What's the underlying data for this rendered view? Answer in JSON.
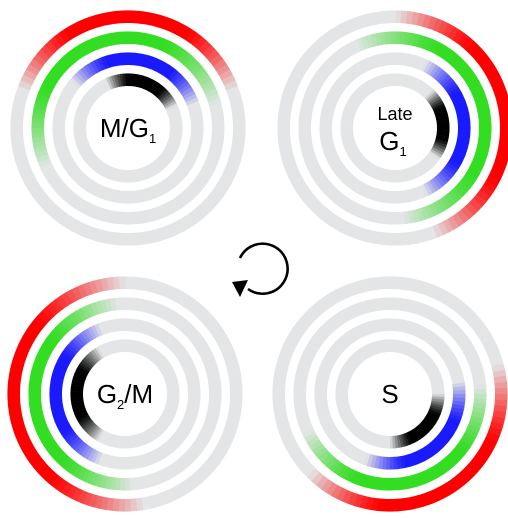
{
  "colors": {
    "ring_background": "#e3e5e6",
    "outer_ring": "#ff0000",
    "second_ring": "#33dd22",
    "third_ring": "#1a1aff",
    "inner_ring": "#000000",
    "cycle_arrow": "#000000"
  },
  "ring_order": [
    "outer_ring",
    "second_ring",
    "third_ring",
    "inner_ring"
  ],
  "cycle_arrow_icon": "clockwise-cycle-arrow",
  "panels": [
    {
      "id": "m-g1",
      "label": {
        "main": "M/G",
        "sub": "1",
        "after": ""
      },
      "rings": [
        {
          "center_deg": 0,
          "span_deg": 140
        },
        {
          "center_deg": -20,
          "span_deg": 190
        },
        {
          "center_deg": 10,
          "span_deg": 120
        },
        {
          "center_deg": 20,
          "span_deg": 90
        }
      ]
    },
    {
      "id": "late-g1",
      "label": {
        "top": "Late",
        "main": "G",
        "sub": "1",
        "after": ""
      },
      "rings": [
        {
          "center_deg": 80,
          "span_deg": 160
        },
        {
          "center_deg": 75,
          "span_deg": 200
        },
        {
          "center_deg": 90,
          "span_deg": 130
        },
        {
          "center_deg": 85,
          "span_deg": 80
        }
      ]
    },
    {
      "id": "g2-m",
      "label": {
        "main": "G",
        "sub": "2",
        "after": "/M"
      },
      "rings": [
        {
          "center_deg": 265,
          "span_deg": 190
        },
        {
          "center_deg": 265,
          "span_deg": 180
        },
        {
          "center_deg": 270,
          "span_deg": 140
        },
        {
          "center_deg": 270,
          "span_deg": 120
        }
      ]
    },
    {
      "id": "s",
      "label": {
        "main": "S",
        "sub": "",
        "after": ""
      },
      "rings": [
        {
          "center_deg": 150,
          "span_deg": 150
        },
        {
          "center_deg": 165,
          "span_deg": 160
        },
        {
          "center_deg": 140,
          "span_deg": 120
        },
        {
          "center_deg": 135,
          "span_deg": 90
        }
      ]
    }
  ]
}
